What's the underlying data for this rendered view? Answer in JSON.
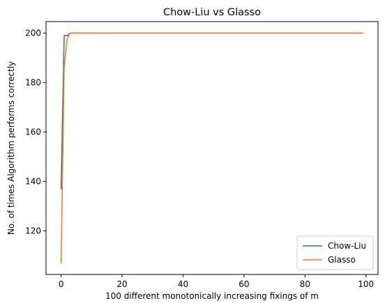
{
  "chart_data": {
    "type": "line",
    "title": "Chow-Liu vs Glasso",
    "xlabel": "100 different monotonically increasing fixings of m",
    "ylabel": "No. of times Algorithm performs correctly",
    "xlim": [
      -4.95,
      103.95
    ],
    "ylim": [
      102.35,
      204.65
    ],
    "xticks": [
      0,
      20,
      40,
      60,
      80,
      100
    ],
    "yticks": [
      120,
      140,
      160,
      180,
      200
    ],
    "grid": false,
    "legend_position": "lower right",
    "series": [
      {
        "name": "Chow-Liu",
        "color": "#1f77b4",
        "x": [
          0,
          1,
          2,
          3,
          99
        ],
        "y": [
          137,
          199,
          199,
          200,
          200
        ]
      },
      {
        "name": "Glasso",
        "color": "#ff7f0e",
        "x": [
          0,
          1,
          2,
          3,
          99
        ],
        "y": [
          107,
          186,
          198,
          200,
          200
        ]
      }
    ]
  }
}
